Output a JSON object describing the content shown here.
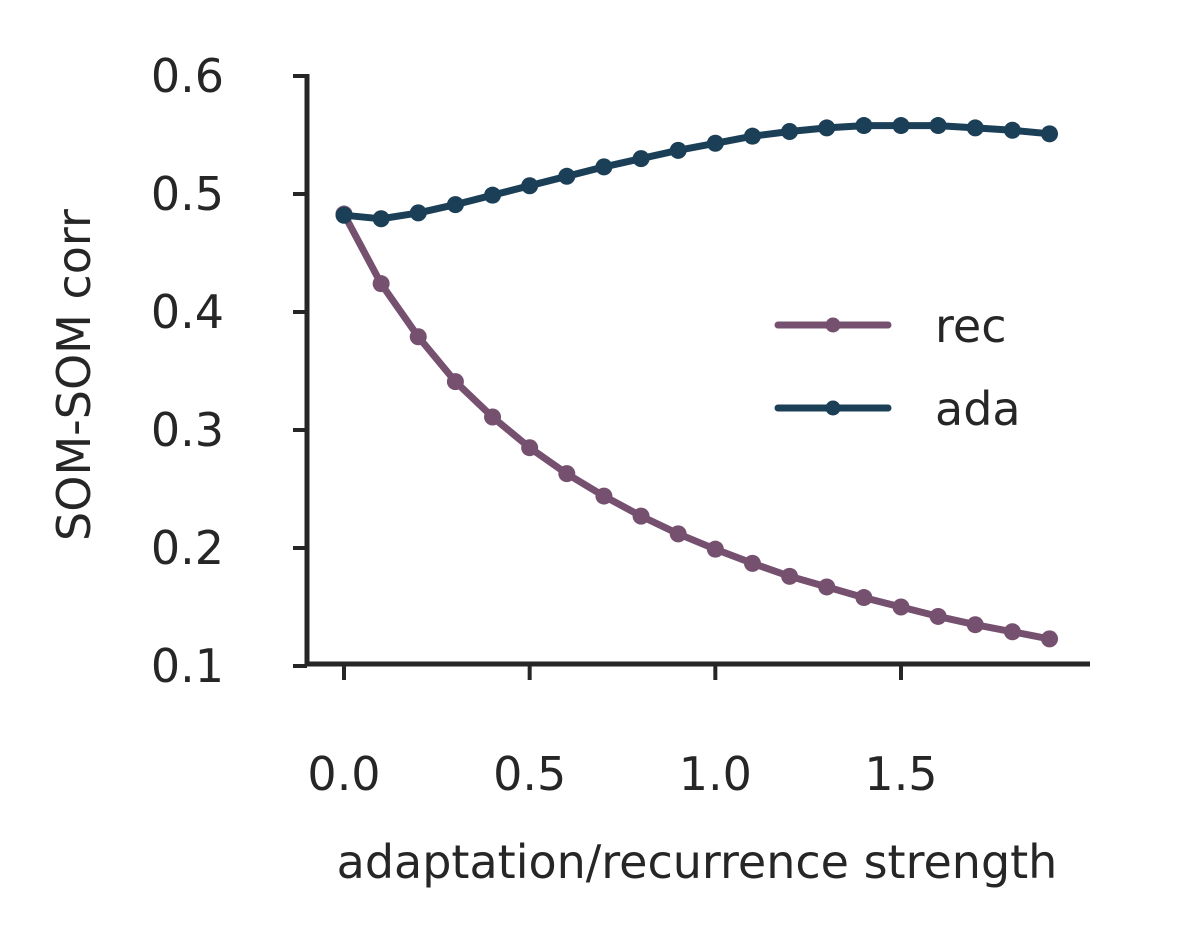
{
  "chart_data": {
    "type": "line",
    "title": "",
    "xlabel": "adaptation/recurrence strength",
    "ylabel": "SOM-SOM corr",
    "xlim": [
      -0.1,
      2.0
    ],
    "ylim": [
      0.1,
      0.6
    ],
    "xticks": [
      0.0,
      0.5,
      1.0,
      1.5
    ],
    "xtick_labels": [
      "0.0",
      "0.5",
      "1.0",
      "1.5"
    ],
    "yticks": [
      0.1,
      0.2,
      0.3,
      0.4,
      0.5,
      0.6
    ],
    "ytick_labels": [
      "0.1",
      "0.2",
      "0.3",
      "0.4",
      "0.5",
      "0.6"
    ],
    "grid": false,
    "legend_position": "center-right",
    "x": [
      0.0,
      0.1,
      0.2,
      0.3,
      0.4,
      0.5,
      0.6,
      0.7,
      0.8,
      0.9,
      1.0,
      1.1,
      1.2,
      1.3,
      1.4,
      1.5,
      1.6,
      1.7,
      1.8,
      1.9
    ],
    "series": [
      {
        "name": "rec",
        "color": "#76506f",
        "values": [
          0.483,
          0.424,
          0.379,
          0.341,
          0.311,
          0.285,
          0.263,
          0.244,
          0.227,
          0.212,
          0.199,
          0.187,
          0.176,
          0.167,
          0.158,
          0.15,
          0.142,
          0.135,
          0.129,
          0.123
        ]
      },
      {
        "name": "ada",
        "color": "#1b3f57",
        "values": [
          0.482,
          0.479,
          0.484,
          0.491,
          0.499,
          0.507,
          0.515,
          0.523,
          0.53,
          0.537,
          0.543,
          0.549,
          0.553,
          0.556,
          0.558,
          0.558,
          0.558,
          0.556,
          0.554,
          0.551
        ]
      }
    ]
  }
}
